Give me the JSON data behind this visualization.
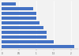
{
  "values": [
    0.4,
    0.9,
    1.0,
    1.0,
    1.1,
    1.2,
    1.3,
    1.3,
    1.5,
    2.1
  ],
  "bar_color": "#4472c4",
  "background_color": "#f2f2f2",
  "grid_color": "#ffffff",
  "xlim": [
    0,
    2.2
  ],
  "xticks": [
    0,
    0.5,
    1.0,
    1.5,
    2.0
  ],
  "xtick_labels": [
    "0",
    "0.5",
    "1",
    "1.5",
    "2"
  ]
}
